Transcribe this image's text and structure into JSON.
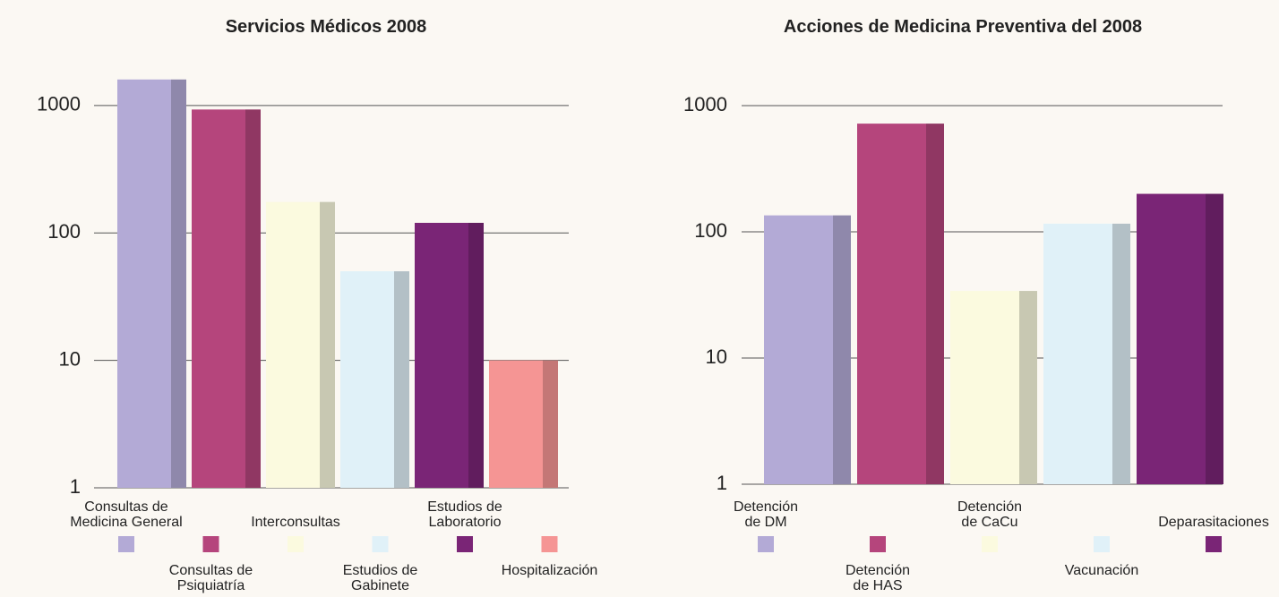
{
  "chart_data": [
    {
      "type": "bar",
      "title": "Servicios Médicos 2008",
      "log_scale": true,
      "categories": [
        "Consultas de\nMedicina General",
        "Consultas de\nPsiquiatría",
        "Interconsultas",
        "Estudios de\nGabinete",
        "Estudios de\nLaboratorio",
        "Hospitalización"
      ],
      "values": [
        1600,
        930,
        175,
        50,
        120,
        10
      ],
      "colors": [
        "#b3aad6",
        "#b5457c",
        "#fbfadf",
        "#e0f1f8",
        "#7a2576",
        "#f59594"
      ],
      "ylim": [
        1,
        2000
      ],
      "yticks": [
        1,
        10,
        100,
        1000
      ],
      "grid": true
    },
    {
      "type": "bar",
      "title": "Acciones de Medicina Preventiva del 2008",
      "log_scale": true,
      "categories": [
        "Detención\nde DM",
        "Detención\nde HAS",
        "Detención\nde CaCu",
        "Vacunación",
        "Deparasitaciones"
      ],
      "values": [
        135,
        720,
        34,
        116,
        200
      ],
      "colors": [
        "#b3aad6",
        "#b5457c",
        "#fbfadf",
        "#e0f1f8",
        "#7a2576"
      ],
      "ylim": [
        1,
        1000
      ],
      "yticks": [
        1,
        10,
        100,
        1000
      ],
      "grid": true
    }
  ]
}
